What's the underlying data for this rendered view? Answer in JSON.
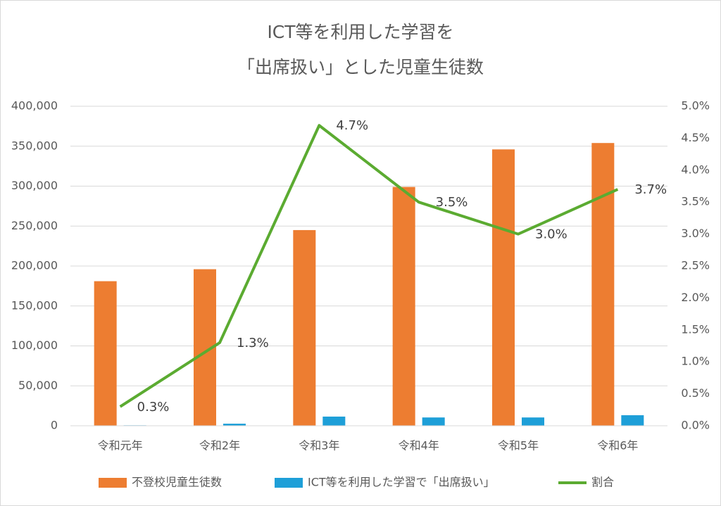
{
  "chart_data": {
    "type": "bar",
    "title": [
      "ICT等を利用した学習を",
      "「出席扱い」とした児童生徒数"
    ],
    "categories": [
      "令和元年",
      "令和2年",
      "令和3年",
      "令和4年",
      "令和5年",
      "令和6年"
    ],
    "series": [
      {
        "name": "不登校児童生徒数",
        "type": "bar",
        "color": "#ed7d31",
        "values": [
          181000,
          196000,
          245000,
          299000,
          346000,
          354000
        ]
      },
      {
        "name": "ICT等を利用した学習で「出席扱い」",
        "type": "bar",
        "color": "#1e9fd8",
        "values": [
          600,
          2600,
          11500,
          10400,
          10400,
          13200
        ]
      },
      {
        "name": "割合",
        "type": "line",
        "axis": "y2",
        "color": "#5bab31",
        "values": [
          0.3,
          1.3,
          4.7,
          3.5,
          3.0,
          3.7
        ],
        "value_labels": [
          "0.3%",
          "1.3%",
          "4.7%",
          "3.5%",
          "3.0%",
          "3.7%"
        ]
      }
    ],
    "ylim": [
      0,
      400000
    ],
    "yticks": [
      0,
      {
        "value": 50000,
        "label": "50,000"
      },
      {
        "value": 100000,
        "label": "100,000"
      },
      {
        "value": 150000,
        "label": "150,000"
      },
      {
        "value": 200000,
        "label": "200,000"
      },
      {
        "value": 250000,
        "label": "250,000"
      },
      {
        "value": 300000,
        "label": "300,000"
      },
      {
        "value": 350000,
        "label": "350,000"
      },
      {
        "value": 400000,
        "label": "400,000"
      }
    ],
    "y2lim": [
      0,
      5
    ],
    "y2ticks": [
      {
        "value": 0,
        "label": "0.0%"
      },
      {
        "value": 0.5,
        "label": "0.5%"
      },
      {
        "value": 1,
        "label": "1.0%"
      },
      {
        "value": 1.5,
        "label": "1.5%"
      },
      {
        "value": 2,
        "label": "2.0%"
      },
      {
        "value": 2.5,
        "label": "2.5%"
      },
      {
        "value": 3,
        "label": "3.0%"
      },
      {
        "value": 3.5,
        "label": "3.5%"
      },
      {
        "value": 4,
        "label": "4.0%"
      },
      {
        "value": 4.5,
        "label": "4.5%"
      },
      {
        "value": 5,
        "label": "5.0%"
      }
    ],
    "grid": true,
    "legend": "bottom"
  }
}
